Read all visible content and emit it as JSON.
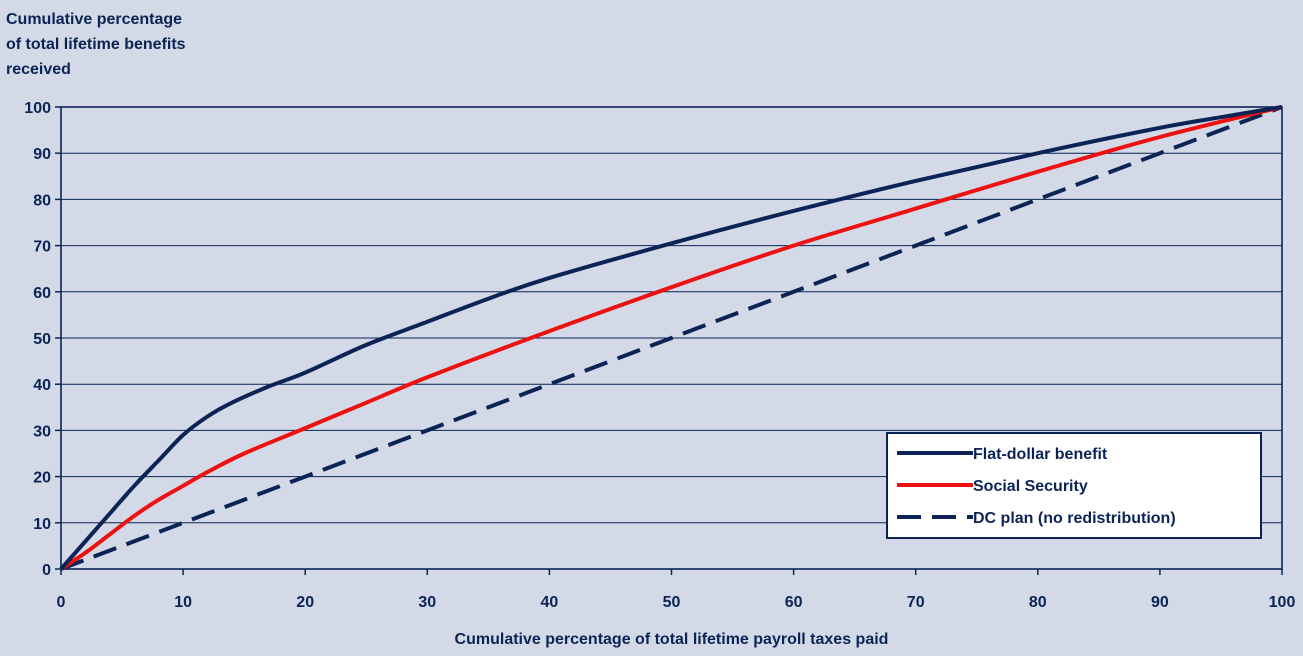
{
  "chart_data": {
    "type": "line",
    "title": "",
    "ylabel": [
      "Cumulative percentage",
      "of total lifetime benefits",
      "received"
    ],
    "xlabel": "Cumulative percentage of total lifetime payroll taxes paid",
    "xlim": [
      0,
      100
    ],
    "ylim": [
      0,
      100
    ],
    "x_ticks": [
      "0",
      "10",
      "20",
      "30",
      "40",
      "50",
      "60",
      "70",
      "80",
      "90",
      "100"
    ],
    "y_ticks": [
      "0",
      "10",
      "20",
      "30",
      "40",
      "50",
      "60",
      "70",
      "80",
      "90",
      "100"
    ],
    "grid": "horizontal",
    "legend_position": "bottom-right",
    "series": [
      {
        "name": "Flat-dollar benefit",
        "color": "#0b2455",
        "style": "solid",
        "x": [
          0,
          2,
          4,
          6,
          8,
          10,
          12,
          14,
          17,
          20,
          25,
          30,
          35,
          40,
          50,
          60,
          70,
          80,
          90,
          95,
          100
        ],
        "y": [
          0,
          6,
          12,
          18,
          23.5,
          29,
          33,
          36,
          39.5,
          42.5,
          48.5,
          53.5,
          58.5,
          63,
          70.5,
          77.5,
          84,
          90,
          95.5,
          97.8,
          100
        ]
      },
      {
        "name": "Social Security",
        "color": "#ee1111",
        "style": "solid",
        "x": [
          0,
          2,
          4,
          6,
          8,
          10,
          12,
          15,
          20,
          25,
          30,
          40,
          50,
          60,
          70,
          80,
          90,
          100
        ],
        "y": [
          0,
          3.5,
          7.5,
          11.5,
          15,
          18,
          21,
          25,
          30.5,
          36,
          41.5,
          51.5,
          61,
          70,
          78,
          86,
          93.5,
          100
        ]
      },
      {
        "name": "DC plan (no redistribution)",
        "color": "#0b2455",
        "style": "dashed",
        "x": [
          0,
          10,
          20,
          30,
          40,
          50,
          60,
          70,
          80,
          90,
          100
        ],
        "y": [
          0,
          10,
          20,
          30,
          40,
          50,
          60,
          70,
          80,
          90,
          100
        ]
      }
    ]
  }
}
